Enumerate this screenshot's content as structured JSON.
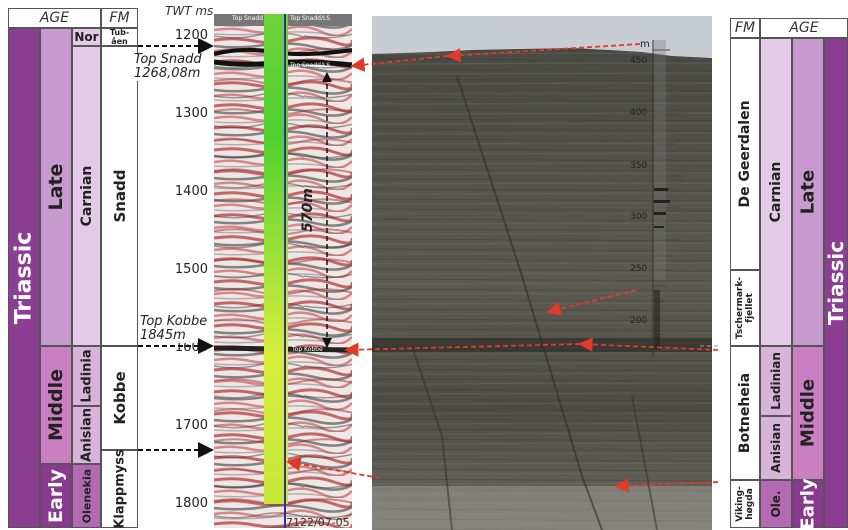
{
  "left_column": {
    "age_header": "AGE",
    "fm_header": "FM",
    "period": "Triassic",
    "epochs": {
      "late": "Late",
      "middle": "Middle",
      "early": "Early"
    },
    "stages": {
      "nor": "Nor",
      "carnian": "Carnian",
      "ladinian": "Ladinia",
      "anisian": "Anisian",
      "olenekian": "Olenekia"
    },
    "formations": {
      "tubaen": "Tub-\nåen",
      "snadd": "Snadd",
      "kobbe": "Kobbe",
      "klappmyss": "Klappmyss"
    }
  },
  "seismic": {
    "twt_label": "TWT ms",
    "ticks": [
      "1200",
      "1300",
      "1400",
      "1500",
      "1600",
      "1700",
      "1800"
    ],
    "top_snadd_label": "Top Snadd",
    "top_snadd_depth": "1268,08m",
    "top_kobbe_label": "Top Kobbe",
    "top_kobbe_depth": "1845m",
    "thickness_label": "570m",
    "well_label": "7122/07-05",
    "inline_labels": {
      "top": "Top Snadd",
      "top_right": "Top Snadd/LS",
      "mid": "Top Kobbe"
    }
  },
  "log": {
    "unit": "m",
    "ticks": [
      "450",
      "400",
      "350",
      "300",
      "250",
      "200"
    ]
  },
  "right_column": {
    "fm_header": "FM",
    "age_header": "AGE",
    "period": "Triassic",
    "epochs": {
      "late": "Late",
      "middle": "Middle",
      "early": "Early"
    },
    "stages": {
      "carnian": "Carnian",
      "ladinian": "Ladinian",
      "anisian": "Anisian",
      "olenekian": "Ole."
    },
    "formations": {
      "degeerdalen": "De Geerdalen",
      "tschermak": "Tschermark-\nfjellet",
      "botneheia": "Botneheia",
      "vikinghogda": "Viking-\nhøgda"
    }
  },
  "colors": {
    "period": "#8c3f92",
    "epoch_late": "#c79bcd",
    "epoch_middle": "#c97fc0",
    "epoch_early": "#8a3a8e",
    "stage_late": "#e3cbe7",
    "stage_middle": "#d9b4da",
    "stage_early": "#b46ab3",
    "arrow": "#e03a2a"
  }
}
